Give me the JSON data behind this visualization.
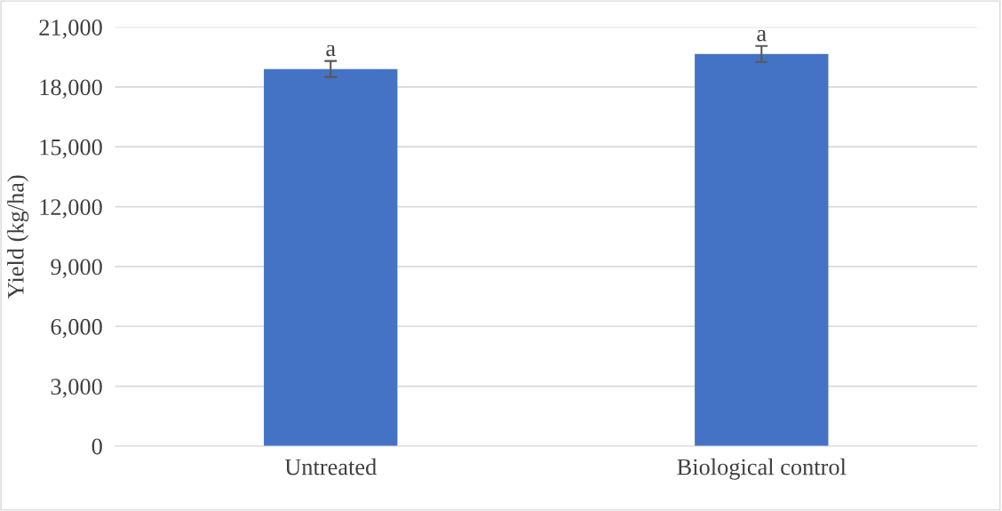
{
  "chart_data": {
    "type": "bar",
    "ylabel": "Yield (kg/ha)",
    "categories": [
      "Untreated",
      "Biological control"
    ],
    "values": [
      18900,
      19650
    ],
    "errors": [
      400,
      400
    ],
    "color": "#4472c4",
    "ylim": [
      0,
      21000
    ],
    "yticks": [
      {
        "value": 0,
        "label": "0"
      },
      {
        "value": 3000,
        "label": "3,000"
      },
      {
        "value": 6000,
        "label": "6,000"
      },
      {
        "value": 9000,
        "label": "9,000"
      },
      {
        "value": 12000,
        "label": "12,000"
      },
      {
        "value": 15000,
        "label": "15,000"
      },
      {
        "value": 18000,
        "label": "18,000"
      },
      {
        "value": 21000,
        "label": "21,000"
      }
    ],
    "grid": "y",
    "annotations": [
      {
        "text": "a",
        "x": "Untreated",
        "y": 19300
      },
      {
        "text": "a",
        "x": "Biological control",
        "y": 20050
      }
    ]
  }
}
